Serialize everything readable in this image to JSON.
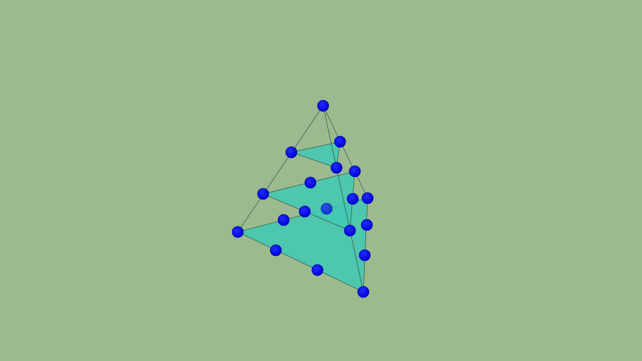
{
  "scene": {
    "background_color": "#9bbb8f",
    "face_color": "#40c9b4",
    "edge_color": "#3f5a44",
    "sphere_color": "#0000f0",
    "sphere_highlight": "#1a40ff",
    "levels": 3
  }
}
